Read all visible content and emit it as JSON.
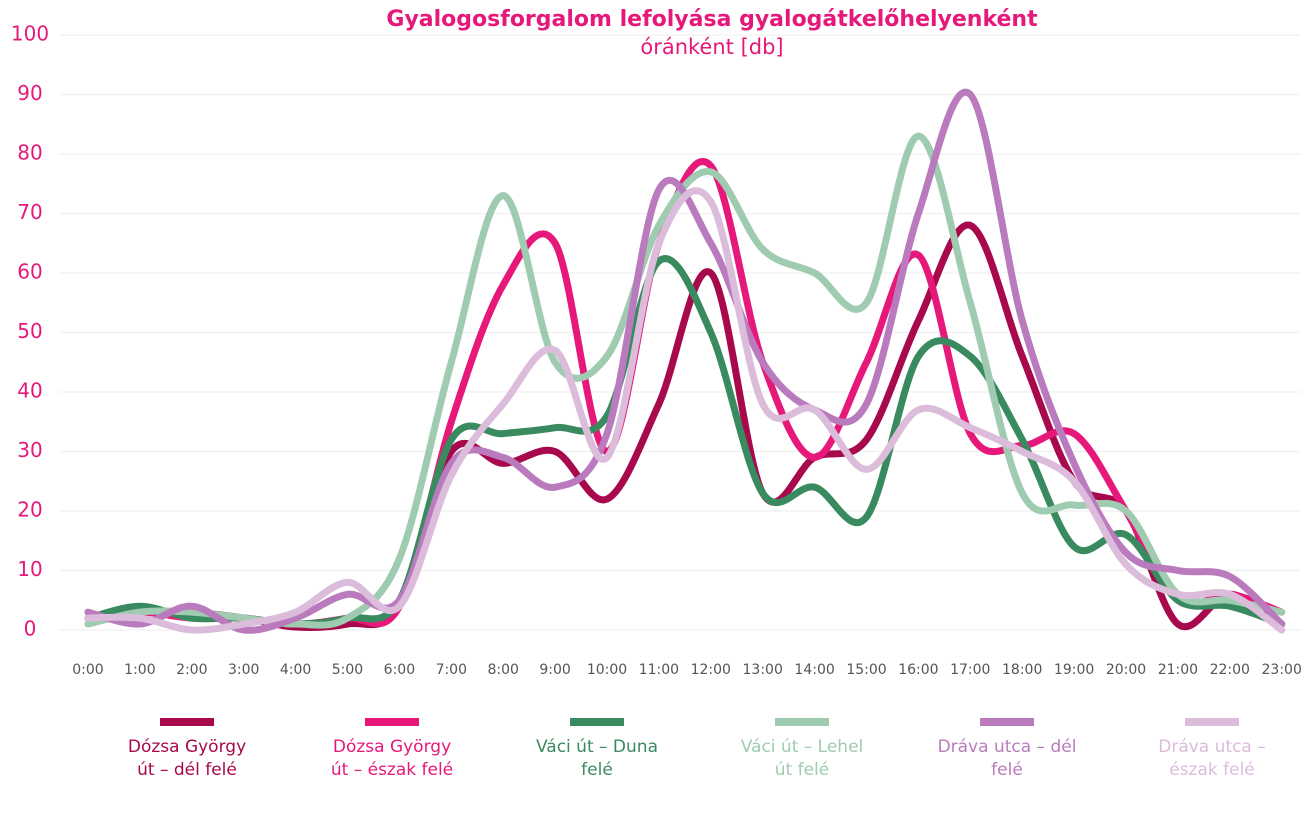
{
  "chart_data": {
    "type": "line",
    "title": "Gyalogosforgalom lefolyása gyalogátkelőhelyenként",
    "subtitle": "óránként [db]",
    "categories": [
      "0:00",
      "1:00",
      "2:00",
      "3:00",
      "4:00",
      "5:00",
      "6:00",
      "7:00",
      "8:00",
      "9:00",
      "10:00",
      "11:00",
      "12:00",
      "13:00",
      "14:00",
      "15:00",
      "16:00",
      "17:00",
      "18:00",
      "19:00",
      "20:00",
      "21:00",
      "22:00",
      "23:00"
    ],
    "series": [
      {
        "name": "Dózsa György út – dél felé",
        "color": "#a8084c",
        "values": [
          2,
          3,
          3,
          2,
          0.5,
          1,
          4,
          30,
          28,
          30,
          22,
          38,
          60,
          23,
          29,
          32,
          52,
          68,
          46,
          25,
          20,
          1,
          6,
          1
        ]
      },
      {
        "name": "Dózsa György út – észak felé",
        "color": "#e6197b",
        "values": [
          2,
          3,
          2,
          2,
          1,
          2,
          4,
          35,
          58,
          65,
          30,
          65,
          78,
          45,
          29,
          45,
          63,
          33,
          31,
          33,
          20,
          5,
          6,
          3
        ]
      },
      {
        "name": "Váci út – Duna felé",
        "color": "#3a8a5f",
        "values": [
          2,
          4,
          2,
          2,
          1,
          2,
          5,
          32,
          33,
          34,
          36,
          62,
          50,
          23,
          24,
          19,
          46,
          46,
          32,
          14,
          16,
          5,
          4,
          1
        ]
      },
      {
        "name": "Váci út – Lehel út felé",
        "color": "#9fcbb0",
        "values": [
          1,
          3,
          3,
          2,
          1,
          2,
          12,
          45,
          73,
          45,
          46,
          68,
          77,
          64,
          60,
          55,
          83,
          55,
          23,
          21,
          20,
          6,
          5,
          3
        ]
      },
      {
        "name": "Dráva utca – dél felé",
        "color": "#b97bbd",
        "values": [
          3,
          1,
          4,
          0,
          2,
          6,
          5,
          28,
          29,
          24,
          33,
          74,
          65,
          45,
          37,
          38,
          70,
          90,
          52,
          28,
          13,
          10,
          9,
          1
        ]
      },
      {
        "name": "Dráva utca – észak felé",
        "color": "#dbbcdb",
        "values": [
          2,
          2,
          0,
          1,
          3,
          8,
          4,
          26,
          38,
          47,
          29,
          65,
          72,
          38,
          37,
          27,
          37,
          34,
          30,
          25,
          11,
          6,
          6,
          0
        ]
      }
    ],
    "ylim": [
      0,
      100
    ],
    "yticks": [
      0,
      10,
      20,
      30,
      40,
      50,
      60,
      70,
      80,
      90,
      100
    ],
    "grid": true
  }
}
